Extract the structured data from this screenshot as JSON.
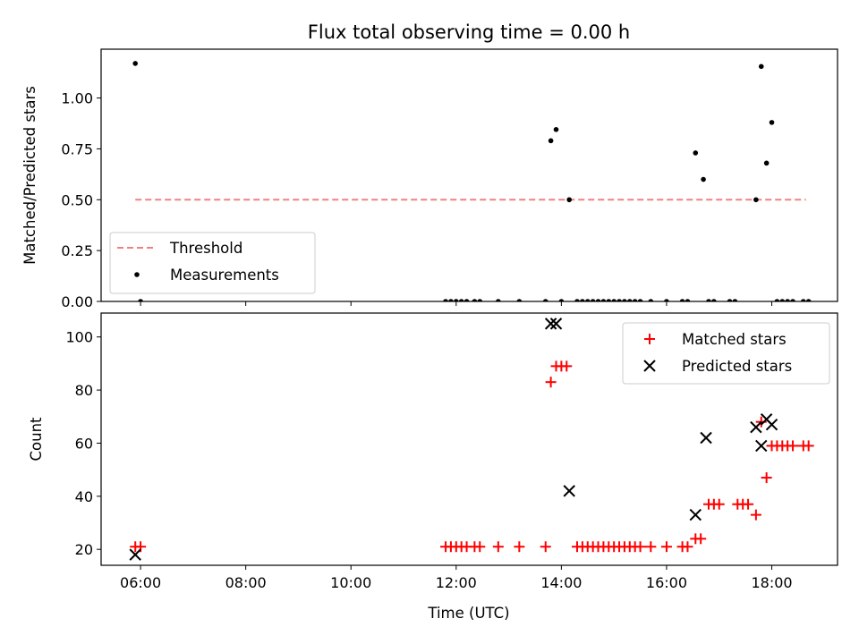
{
  "chart_data": [
    {
      "type": "scatter",
      "title": "Flux total observing time = 0.00 h",
      "xlabel": "",
      "ylabel": "Matched/Predicted stars",
      "xlim": [
        5.25,
        19.25
      ],
      "ylim": [
        0.0,
        1.24
      ],
      "yticks": [
        0.0,
        0.25,
        0.5,
        0.75,
        1.0
      ],
      "yticklabels": [
        "0.00",
        "0.25",
        "0.50",
        "0.75",
        "1.00"
      ],
      "xticks": [
        6,
        8,
        10,
        12,
        14,
        16,
        18
      ],
      "threshold": {
        "name": "Threshold",
        "y": 0.5,
        "x": [
          5.9,
          18.65
        ],
        "color": "#f08080"
      },
      "legend": {
        "position": "lower-left",
        "entries": [
          "Threshold",
          "Measurements"
        ]
      },
      "series": [
        {
          "name": "Measurements",
          "color": "#000000",
          "points": [
            [
              5.9,
              1.17
            ],
            [
              6.0,
              0.0
            ],
            [
              11.8,
              0.0
            ],
            [
              11.9,
              0.0
            ],
            [
              12.0,
              0.0
            ],
            [
              12.1,
              0.0
            ],
            [
              12.2,
              0.0
            ],
            [
              12.35,
              0.0
            ],
            [
              12.45,
              0.0
            ],
            [
              12.8,
              0.0
            ],
            [
              13.2,
              0.0
            ],
            [
              13.7,
              0.0
            ],
            [
              13.8,
              0.79
            ],
            [
              13.9,
              0.845
            ],
            [
              14.0,
              0.0
            ],
            [
              14.15,
              0.5
            ],
            [
              14.3,
              0.0
            ],
            [
              14.4,
              0.0
            ],
            [
              14.5,
              0.0
            ],
            [
              14.6,
              0.0
            ],
            [
              14.7,
              0.0
            ],
            [
              14.8,
              0.0
            ],
            [
              14.9,
              0.0
            ],
            [
              15.0,
              0.0
            ],
            [
              15.1,
              0.0
            ],
            [
              15.2,
              0.0
            ],
            [
              15.3,
              0.0
            ],
            [
              15.4,
              0.0
            ],
            [
              15.5,
              0.0
            ],
            [
              15.7,
              0.0
            ],
            [
              16.0,
              0.0
            ],
            [
              16.3,
              0.0
            ],
            [
              16.4,
              0.0
            ],
            [
              16.55,
              0.73
            ],
            [
              16.7,
              0.6
            ],
            [
              16.8,
              0.0
            ],
            [
              16.9,
              0.0
            ],
            [
              17.2,
              0.0
            ],
            [
              17.3,
              0.0
            ],
            [
              17.7,
              0.5
            ],
            [
              17.8,
              1.155
            ],
            [
              17.9,
              0.68
            ],
            [
              18.0,
              0.88
            ],
            [
              18.1,
              0.0
            ],
            [
              18.2,
              0.0
            ],
            [
              18.3,
              0.0
            ],
            [
              18.4,
              0.0
            ],
            [
              18.6,
              0.0
            ],
            [
              18.7,
              0.0
            ]
          ]
        }
      ]
    },
    {
      "type": "scatter",
      "title": "",
      "xlabel": "Time (UTC)",
      "ylabel": "Count",
      "xlim": [
        5.25,
        19.25
      ],
      "ylim": [
        14,
        109
      ],
      "yticks": [
        20,
        40,
        60,
        80,
        100
      ],
      "yticklabels": [
        "20",
        "40",
        "60",
        "80",
        "100"
      ],
      "xticks": [
        6,
        8,
        10,
        12,
        14,
        16,
        18
      ],
      "xticklabels": [
        "06:00",
        "08:00",
        "10:00",
        "12:00",
        "14:00",
        "16:00",
        "18:00"
      ],
      "legend": {
        "position": "top-right",
        "entries": [
          "Matched stars",
          "Predicted stars"
        ]
      },
      "series": [
        {
          "name": "Matched stars",
          "marker": "plus",
          "color": "#ff0000",
          "points": [
            [
              5.9,
              21
            ],
            [
              6.0,
              21
            ],
            [
              11.8,
              21
            ],
            [
              11.9,
              21
            ],
            [
              12.0,
              21
            ],
            [
              12.1,
              21
            ],
            [
              12.2,
              21
            ],
            [
              12.35,
              21
            ],
            [
              12.45,
              21
            ],
            [
              12.8,
              21
            ],
            [
              13.2,
              21
            ],
            [
              13.7,
              21
            ],
            [
              13.8,
              83
            ],
            [
              13.9,
              89
            ],
            [
              14.0,
              89
            ],
            [
              14.1,
              89
            ],
            [
              14.3,
              21
            ],
            [
              14.4,
              21
            ],
            [
              14.5,
              21
            ],
            [
              14.6,
              21
            ],
            [
              14.7,
              21
            ],
            [
              14.8,
              21
            ],
            [
              14.9,
              21
            ],
            [
              15.0,
              21
            ],
            [
              15.1,
              21
            ],
            [
              15.2,
              21
            ],
            [
              15.3,
              21
            ],
            [
              15.4,
              21
            ],
            [
              15.5,
              21
            ],
            [
              15.7,
              21
            ],
            [
              16.0,
              21
            ],
            [
              16.3,
              21
            ],
            [
              16.4,
              21
            ],
            [
              16.55,
              24
            ],
            [
              16.65,
              24
            ],
            [
              16.8,
              37
            ],
            [
              16.9,
              37
            ],
            [
              17.0,
              37
            ],
            [
              17.35,
              37
            ],
            [
              17.45,
              37
            ],
            [
              17.55,
              37
            ],
            [
              17.7,
              33
            ],
            [
              17.8,
              68
            ],
            [
              17.9,
              47
            ],
            [
              18.0,
              59
            ],
            [
              18.1,
              59
            ],
            [
              18.2,
              59
            ],
            [
              18.3,
              59
            ],
            [
              18.4,
              59
            ],
            [
              18.6,
              59
            ],
            [
              18.7,
              59
            ]
          ]
        },
        {
          "name": "Predicted stars",
          "marker": "x",
          "color": "#000000",
          "points": [
            [
              5.9,
              18
            ],
            [
              13.8,
              105
            ],
            [
              13.9,
              105
            ],
            [
              14.15,
              42
            ],
            [
              16.55,
              33
            ],
            [
              16.75,
              62
            ],
            [
              17.7,
              66
            ],
            [
              17.8,
              59
            ],
            [
              17.9,
              69
            ],
            [
              18.0,
              67
            ]
          ]
        }
      ]
    }
  ]
}
